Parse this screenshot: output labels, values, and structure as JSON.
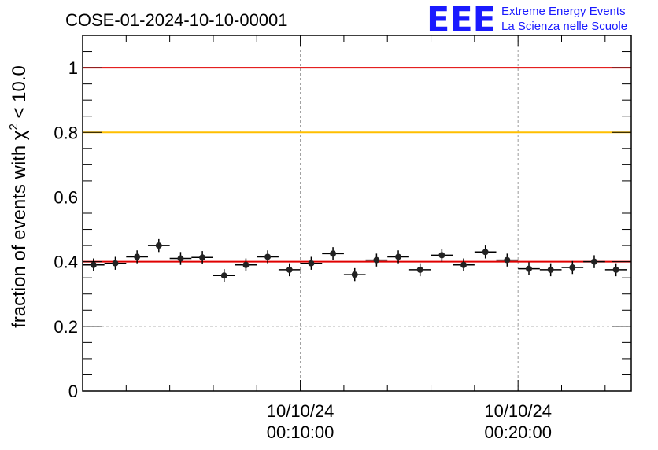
{
  "chart_data": {
    "type": "scatter",
    "title": "COSE-01-2024-10-10-00001",
    "ylabel_prefix": "fraction of events with χ",
    "ylabel_sup": "2",
    "ylabel_suffix": " < 10.0",
    "ylim": [
      0,
      1.1
    ],
    "yticks": [
      0,
      0.2,
      0.4,
      0.6,
      0.8,
      1
    ],
    "ytick_labels": [
      "0",
      "0.2",
      "0.4",
      "0.6",
      "0.8",
      "1"
    ],
    "xlim_minutes": [
      0,
      25.2
    ],
    "xticks": [
      {
        "minute": 10,
        "date": "10/10/24",
        "time": "00:10:00"
      },
      {
        "minute": 20,
        "date": "10/10/24",
        "time": "00:20:00"
      }
    ],
    "bin_width_minutes": 1,
    "points": [
      {
        "minute": 0.5,
        "y": 0.39,
        "err": 0.02
      },
      {
        "minute": 1.5,
        "y": 0.395,
        "err": 0.02
      },
      {
        "minute": 2.5,
        "y": 0.415,
        "err": 0.02
      },
      {
        "minute": 3.5,
        "y": 0.45,
        "err": 0.02
      },
      {
        "minute": 4.5,
        "y": 0.41,
        "err": 0.02
      },
      {
        "minute": 5.5,
        "y": 0.413,
        "err": 0.02
      },
      {
        "minute": 6.5,
        "y": 0.357,
        "err": 0.02
      },
      {
        "minute": 7.5,
        "y": 0.39,
        "err": 0.02
      },
      {
        "minute": 8.5,
        "y": 0.415,
        "err": 0.02
      },
      {
        "minute": 9.5,
        "y": 0.375,
        "err": 0.02
      },
      {
        "minute": 10.5,
        "y": 0.395,
        "err": 0.02
      },
      {
        "minute": 11.5,
        "y": 0.425,
        "err": 0.02
      },
      {
        "minute": 12.5,
        "y": 0.36,
        "err": 0.02
      },
      {
        "minute": 13.5,
        "y": 0.405,
        "err": 0.02
      },
      {
        "minute": 14.5,
        "y": 0.415,
        "err": 0.02
      },
      {
        "minute": 15.5,
        "y": 0.375,
        "err": 0.02
      },
      {
        "minute": 16.5,
        "y": 0.42,
        "err": 0.02
      },
      {
        "minute": 17.5,
        "y": 0.39,
        "err": 0.02
      },
      {
        "minute": 18.5,
        "y": 0.43,
        "err": 0.02
      },
      {
        "minute": 19.5,
        "y": 0.405,
        "err": 0.02
      },
      {
        "minute": 20.5,
        "y": 0.378,
        "err": 0.02
      },
      {
        "minute": 21.5,
        "y": 0.375,
        "err": 0.02
      },
      {
        "minute": 22.5,
        "y": 0.382,
        "err": 0.02
      },
      {
        "minute": 23.5,
        "y": 0.4,
        "err": 0.02
      },
      {
        "minute": 24.5,
        "y": 0.375,
        "err": 0.02
      }
    ],
    "reference_lines": [
      {
        "y": 1.0,
        "color": "#e00000"
      },
      {
        "y": 0.8,
        "color": "#ffbf00"
      },
      {
        "y": 0.4,
        "color": "#e00000"
      }
    ],
    "grid": true
  },
  "logo": {
    "mark": "EEE",
    "line1": "Extreme Energy Events",
    "line2": "La Scienza nelle Scuole",
    "color": "#1a1aff"
  }
}
